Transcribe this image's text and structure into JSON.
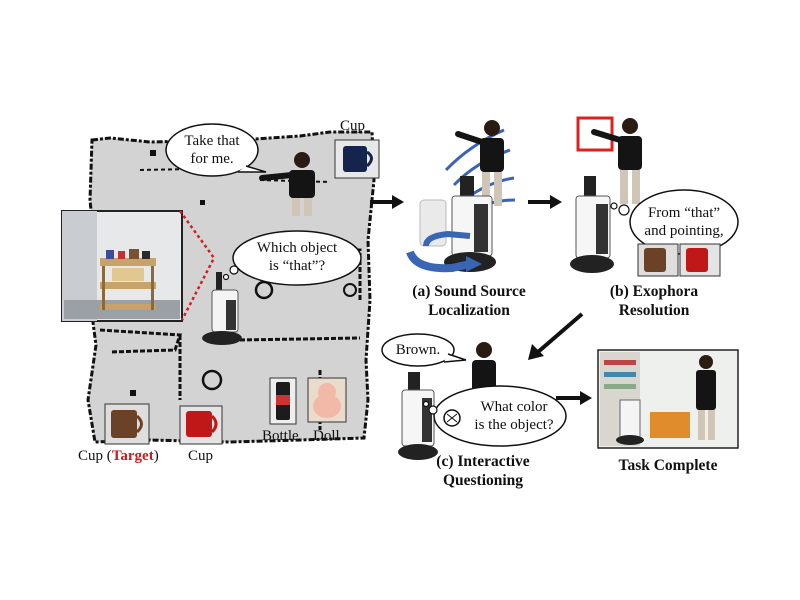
{
  "map": {
    "bubble_request_l1": "Take that",
    "bubble_request_l2": "for me.",
    "bubble_robot_l1": "Which object",
    "bubble_robot_l2": "is “that”?"
  },
  "objects": {
    "cup_top": "Cup",
    "cup_target_prefix": "Cup (",
    "cup_target_word": "Target",
    "cup_target_suffix": ")",
    "cup_red": "Cup",
    "bottle": "Bottle",
    "doll": "Doll"
  },
  "stages": {
    "a_l1": "(a) Sound Source",
    "a_l2": "Localization",
    "b_l1": "(b) Exophora",
    "b_l2": "Resolution",
    "b_bubble_l1": "From “that”",
    "b_bubble_l2": "and pointing,",
    "c_l1": "(c) Interactive",
    "c_l2": "Questioning",
    "c_answer": "Brown.",
    "c_question_l1": "What color",
    "c_question_l2": "is the object?",
    "complete": "Task Complete"
  },
  "colors": {
    "target_text": "#c81e1e",
    "sound_arc": "#3a64b4",
    "pointing_box": "#e02020",
    "map_floor": "#d3d3d3"
  }
}
